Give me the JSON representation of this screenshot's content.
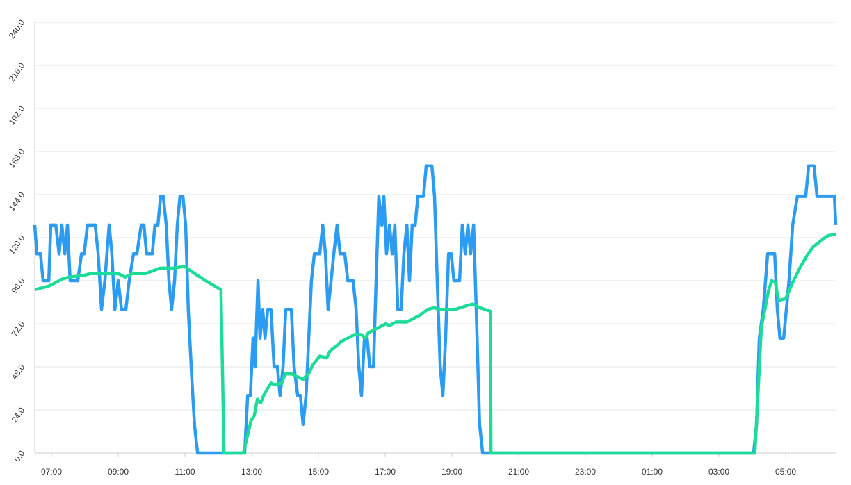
{
  "chart_data": {
    "type": "line",
    "xlim": [
      6.5,
      30.5
    ],
    "xticks": [
      {
        "value": 7,
        "label": "07:00"
      },
      {
        "value": 9,
        "label": "09:00"
      },
      {
        "value": 11,
        "label": "11:00"
      },
      {
        "value": 13,
        "label": "13:00"
      },
      {
        "value": 15,
        "label": "15:00"
      },
      {
        "value": 17,
        "label": "17:00"
      },
      {
        "value": 19,
        "label": "19:00"
      },
      {
        "value": 21,
        "label": "21:00"
      },
      {
        "value": 23,
        "label": "23:00"
      },
      {
        "value": 25,
        "label": "01:00"
      },
      {
        "value": 27,
        "label": "03:00"
      },
      {
        "value": 29,
        "label": "05:00"
      }
    ],
    "ylim": [
      0,
      240
    ],
    "yticks": [
      {
        "value": 0,
        "label": "0.0"
      },
      {
        "value": 24,
        "label": "24.0"
      },
      {
        "value": 48,
        "label": "48.0"
      },
      {
        "value": 72,
        "label": "72.0"
      },
      {
        "value": 96,
        "label": "96.0"
      },
      {
        "value": 120,
        "label": "120.0"
      },
      {
        "value": 144,
        "label": "144.0"
      },
      {
        "value": 168,
        "label": "168.0"
      },
      {
        "value": 192,
        "label": "192.0"
      },
      {
        "value": 216,
        "label": "216.0"
      },
      {
        "value": 240,
        "label": "240.0"
      }
    ],
    "grid": true,
    "series": [
      {
        "color": "#2b9cf2",
        "x": [
          6.5,
          6.56,
          6.67,
          6.75,
          6.92,
          6.98,
          7.13,
          7.23,
          7.31,
          7.4,
          7.48,
          7.56,
          7.79,
          7.9,
          7.98,
          8.08,
          8.31,
          8.4,
          8.5,
          8.6,
          8.73,
          8.81,
          8.9,
          9.0,
          9.1,
          9.23,
          9.33,
          9.46,
          9.56,
          9.69,
          9.77,
          9.85,
          10.02,
          10.1,
          10.19,
          10.27,
          10.35,
          10.44,
          10.52,
          10.6,
          10.69,
          10.77,
          10.85,
          10.94,
          11.02,
          11.1,
          11.21,
          11.29,
          11.38,
          12.79,
          12.88,
          12.96,
          13.04,
          13.1,
          13.19,
          13.25,
          13.33,
          13.4,
          13.48,
          13.58,
          13.67,
          13.77,
          13.85,
          13.94,
          14.02,
          14.19,
          14.27,
          14.38,
          14.46,
          14.54,
          14.63,
          14.71,
          14.79,
          14.88,
          15.04,
          15.13,
          15.21,
          15.29,
          15.38,
          15.46,
          15.56,
          15.65,
          15.79,
          15.88,
          16.04,
          16.13,
          16.21,
          16.29,
          16.38,
          16.46,
          16.54,
          16.65,
          16.73,
          16.81,
          16.9,
          16.96,
          17.04,
          17.13,
          17.21,
          17.29,
          17.38,
          17.48,
          17.56,
          17.65,
          17.73,
          17.81,
          17.9,
          17.98,
          18.15,
          18.23,
          18.4,
          18.48,
          18.56,
          18.65,
          18.73,
          18.81,
          18.9,
          18.98,
          19.06,
          19.23,
          19.31,
          19.4,
          19.48,
          19.56,
          19.65,
          19.73,
          19.83,
          19.92,
          28.04,
          28.13,
          28.21,
          28.33,
          28.46,
          28.67,
          28.75,
          28.83,
          28.94,
          29.02,
          29.1,
          29.21,
          29.35,
          29.6,
          29.69,
          29.85,
          29.94,
          30.46,
          30.5
        ],
        "values": [
          127,
          111,
          111,
          96,
          96,
          127,
          127,
          111,
          127,
          111,
          127,
          96,
          96,
          111,
          111,
          127,
          127,
          111,
          80,
          96,
          127,
          111,
          80,
          96,
          80,
          80,
          96,
          111,
          111,
          127,
          127,
          111,
          111,
          127,
          127,
          143,
          143,
          127,
          96,
          80,
          96,
          127,
          143,
          143,
          127,
          80,
          40,
          15,
          0,
          0,
          32,
          32,
          64,
          48,
          96,
          64,
          80,
          64,
          80,
          80,
          48,
          48,
          32,
          48,
          80,
          80,
          48,
          32,
          32,
          16,
          32,
          64,
          96,
          111,
          111,
          127,
          111,
          80,
          96,
          111,
          127,
          111,
          111,
          96,
          96,
          80,
          48,
          32,
          64,
          64,
          48,
          48,
          96,
          143,
          127,
          143,
          111,
          127,
          111,
          127,
          80,
          80,
          111,
          127,
          96,
          127,
          127,
          143,
          143,
          160,
          160,
          143,
          96,
          48,
          32,
          64,
          111,
          111,
          96,
          96,
          127,
          111,
          127,
          111,
          127,
          80,
          16,
          0,
          0,
          16,
          64,
          80,
          111,
          111,
          80,
          64,
          64,
          80,
          96,
          127,
          143,
          143,
          160,
          160,
          143,
          143,
          127
        ]
      },
      {
        "color": "#1ddc97",
        "x": [
          6.5,
          6.71,
          6.92,
          7.13,
          7.33,
          7.54,
          7.96,
          8.17,
          9.0,
          9.21,
          9.42,
          9.83,
          10.25,
          10.67,
          10.98,
          11.29,
          11.71,
          12.08,
          12.17,
          12.75,
          12.88,
          12.98,
          13.08,
          13.17,
          13.27,
          13.38,
          13.48,
          13.58,
          13.69,
          13.9,
          14.0,
          14.21,
          14.54,
          14.73,
          14.83,
          15.04,
          15.25,
          15.35,
          15.56,
          15.67,
          15.88,
          16.08,
          16.29,
          16.4,
          16.5,
          16.81,
          17.02,
          17.13,
          17.33,
          17.65,
          18.06,
          18.27,
          18.48,
          18.58,
          19.1,
          19.42,
          19.63,
          19.83,
          20.15,
          20.17,
          28.08,
          28.19,
          28.27,
          28.38,
          28.48,
          28.58,
          28.69,
          28.79,
          29.0,
          29.21,
          29.42,
          29.67,
          29.83,
          30.04,
          30.25,
          30.5
        ],
        "values": [
          91,
          92,
          93,
          95,
          97,
          98,
          99,
          100,
          100,
          98,
          100,
          100,
          103,
          103,
          104,
          100,
          95,
          91,
          0,
          0,
          10,
          18,
          21,
          30,
          28,
          33,
          36,
          39,
          38,
          39,
          44,
          44,
          41,
          45,
          49,
          54,
          53,
          57,
          60,
          62,
          64,
          66,
          66,
          64,
          67,
          70,
          72,
          71,
          73,
          73,
          77,
          80,
          81,
          80,
          80,
          82,
          83,
          81,
          79,
          0,
          0,
          40,
          70,
          80,
          90,
          96,
          95,
          85,
          86,
          95,
          103,
          111,
          115,
          118,
          121,
          122
        ]
      }
    ]
  }
}
